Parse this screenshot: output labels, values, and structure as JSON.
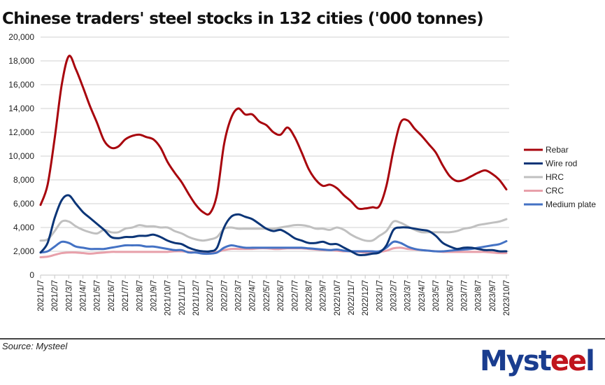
{
  "title": "Chinese traders' steel stocks in 132 cities ('000 tonnes)",
  "source": "Source: Mysteel",
  "logo": {
    "part1": "Myst",
    "part2": "ee",
    "part3": "l",
    "brand_blue": "#1a3d8f",
    "brand_red": "#c0141c"
  },
  "chart_data": {
    "type": "line",
    "title": "Chinese traders' steel stocks in 132 cities ('000 tonnes)",
    "xlabel": "",
    "ylabel": "",
    "ylim": [
      0,
      20000
    ],
    "yticks": [
      0,
      2000,
      4000,
      6000,
      8000,
      10000,
      12000,
      14000,
      16000,
      18000,
      20000
    ],
    "ytick_labels": [
      "0",
      "2,000",
      "4,000",
      "6,000",
      "8,000",
      "10,000",
      "12,000",
      "14,000",
      "16,000",
      "18,000",
      "20,000"
    ],
    "grid": true,
    "legend_position": "right",
    "x_tick_labels": [
      "2021/1/7",
      "2021/2/7",
      "2021/3/7",
      "2021/4/7",
      "2021/5/7",
      "2021/6/7",
      "2021/7/7",
      "2021/8/7",
      "2021/9/7",
      "2021/10/7",
      "2021/11/7",
      "2021/12/7",
      "2022/1/7",
      "2022/2/7",
      "2022/3/7",
      "2022/4/7",
      "2022/5/7",
      "2022/6/7",
      "2022/7/7",
      "2022/8/7",
      "2022/9/7",
      "2022/10/7",
      "2022/11/7",
      "2022/12/7",
      "2023/1/7",
      "2023/2/7",
      "2023/3/7",
      "2023/4/7",
      "2023/5/7",
      "2023/6/7",
      "2023/7/7",
      "2023/8/7",
      "2023/9/7",
      "2023/10/7"
    ],
    "x_note": "values sampled twice per month: index 2k = month k tick, 2k+1 = mid-month",
    "series": [
      {
        "name": "Rebar",
        "color": "#a8050d",
        "values": [
          5900,
          7600,
          11500,
          16000,
          18400,
          17300,
          15800,
          14200,
          12800,
          11300,
          10700,
          10800,
          11400,
          11700,
          11800,
          11600,
          11400,
          10700,
          9500,
          8600,
          7800,
          6800,
          5900,
          5300,
          5200,
          6800,
          11000,
          13200,
          14000,
          13500,
          13500,
          12900,
          12600,
          12000,
          11800,
          12400,
          11600,
          10300,
          8900,
          8000,
          7500,
          7600,
          7300,
          6700,
          6200,
          5600,
          5600,
          5700,
          5800,
          7500,
          10500,
          12800,
          13000,
          12300,
          11700,
          11000,
          10300,
          9200,
          8300,
          7900,
          8000,
          8300,
          8600,
          8800,
          8500,
          8000,
          7200
        ]
      },
      {
        "name": "Wire rod",
        "color": "#0b3577",
        "values": [
          1900,
          2700,
          4800,
          6300,
          6700,
          6000,
          5300,
          4800,
          4300,
          3800,
          3200,
          3100,
          3200,
          3200,
          3300,
          3300,
          3400,
          3200,
          2900,
          2700,
          2600,
          2300,
          2100,
          2000,
          2000,
          2300,
          4000,
          4900,
          5100,
          4900,
          4700,
          4300,
          3900,
          3700,
          3800,
          3500,
          3100,
          2900,
          2700,
          2700,
          2800,
          2600,
          2600,
          2300,
          2000,
          1700,
          1700,
          1800,
          1900,
          2500,
          3800,
          4000,
          4000,
          3900,
          3800,
          3700,
          3300,
          2700,
          2400,
          2200,
          2300,
          2300,
          2200,
          2100,
          2100,
          2000,
          2000
        ]
      },
      {
        "name": "HRC",
        "color": "#c0c0c0",
        "values": [
          2900,
          3000,
          3700,
          4500,
          4500,
          4100,
          3800,
          3600,
          3500,
          3800,
          3600,
          3600,
          3900,
          4000,
          4200,
          4100,
          4100,
          4000,
          4000,
          3700,
          3500,
          3200,
          3000,
          2900,
          3000,
          3200,
          3900,
          4000,
          3900,
          3900,
          3900,
          3900,
          3900,
          3900,
          4000,
          4100,
          4200,
          4200,
          4100,
          3900,
          3900,
          3800,
          4000,
          3800,
          3400,
          3100,
          2900,
          2900,
          3300,
          3700,
          4500,
          4400,
          4100,
          3800,
          3600,
          3600,
          3600,
          3600,
          3600,
          3700,
          3900,
          4000,
          4200,
          4300,
          4400,
          4500,
          4700
        ]
      },
      {
        "name": "CRC",
        "color": "#e8a0aa",
        "values": [
          1500,
          1550,
          1700,
          1850,
          1900,
          1900,
          1850,
          1800,
          1850,
          1900,
          1950,
          1950,
          1950,
          1950,
          1950,
          1950,
          1950,
          1950,
          1950,
          2000,
          2000,
          1950,
          1900,
          1900,
          1900,
          1950,
          2100,
          2200,
          2200,
          2200,
          2200,
          2250,
          2250,
          2200,
          2200,
          2250,
          2250,
          2250,
          2200,
          2150,
          2100,
          2100,
          2050,
          2000,
          2000,
          1950,
          1900,
          1900,
          1950,
          2050,
          2250,
          2300,
          2200,
          2150,
          2100,
          2050,
          2000,
          1950,
          1950,
          1950,
          1950,
          1950,
          1950,
          1950,
          1900,
          1850,
          1850
        ]
      },
      {
        "name": "Medium plate",
        "color": "#4472c4",
        "values": [
          1900,
          2000,
          2400,
          2800,
          2700,
          2400,
          2300,
          2200,
          2200,
          2200,
          2300,
          2400,
          2500,
          2500,
          2500,
          2400,
          2400,
          2300,
          2200,
          2100,
          2100,
          1900,
          1900,
          1800,
          1800,
          1900,
          2300,
          2500,
          2400,
          2300,
          2300,
          2300,
          2300,
          2300,
          2300,
          2300,
          2300,
          2300,
          2250,
          2200,
          2150,
          2100,
          2150,
          2050,
          2000,
          2000,
          2000,
          2000,
          2000,
          2300,
          2800,
          2700,
          2400,
          2200,
          2100,
          2050,
          2000,
          2000,
          2050,
          2100,
          2150,
          2200,
          2300,
          2400,
          2500,
          2600,
          2850
        ]
      }
    ]
  }
}
